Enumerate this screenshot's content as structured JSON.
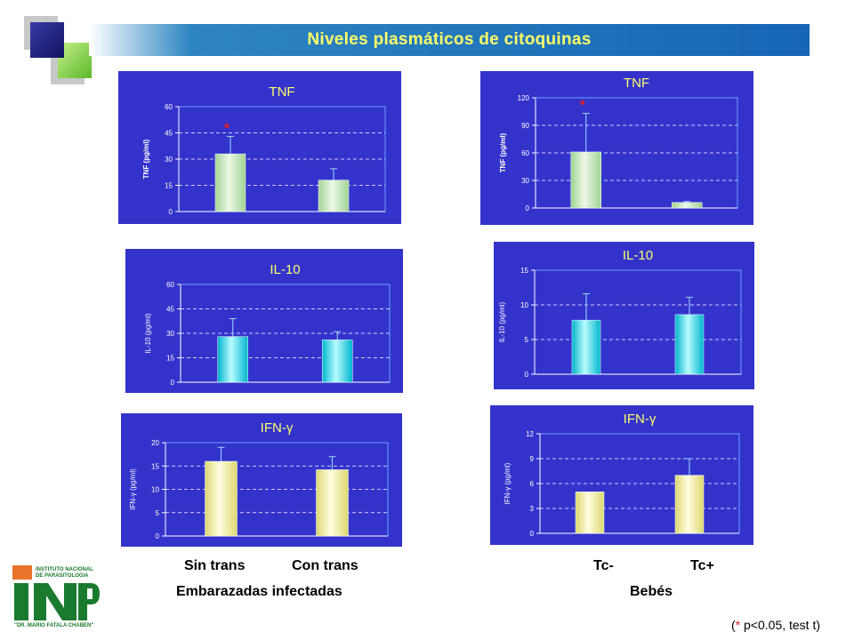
{
  "slide": {
    "title": "Niveles plasmáticos de citoquinas",
    "left_group": {
      "cat1": "Sin trans",
      "cat2": "Con trans",
      "group": "Embarazadas infectadas"
    },
    "right_group": {
      "cat1": "Tc-",
      "cat2": "Tc+",
      "group": "Bebés"
    },
    "footnote": {
      "open": "(",
      "star": "*",
      "text": " p<0.05, test t)"
    },
    "logo": {
      "line1": "INSTITUTO NACIONAL",
      "line2": "DE PARASITOLOGIA",
      "line3": "\"DR. MARIO FATALA CHABEN\""
    },
    "colors": {
      "panel": "#3333cc",
      "accent": "#ffff66",
      "tnf_bar": "#bfe6b0",
      "il10_bar": "#1fd0e0",
      "ifn_bar": "#f0ee90",
      "sig_star": "#e02020"
    }
  },
  "chart_data": [
    {
      "id": "tnf_left",
      "type": "bar",
      "title": "TNF",
      "ylabel": "TNF (pg/ml)",
      "categories": [
        "Sin trans",
        "Con trans"
      ],
      "values": [
        33,
        18
      ],
      "errors": [
        10,
        6.5
      ],
      "ylim": [
        0,
        60
      ],
      "yticks": [
        0,
        15,
        30,
        45,
        60
      ],
      "significance": [
        "*",
        ""
      ],
      "grid": true
    },
    {
      "id": "tnf_right",
      "type": "bar",
      "title": "TNF",
      "ylabel": "TNF (pg/ml)",
      "categories": [
        "Tc-",
        "Tc+"
      ],
      "values": [
        61,
        6
      ],
      "errors": [
        42,
        1
      ],
      "ylim": [
        0,
        120
      ],
      "yticks": [
        0,
        30,
        60,
        90,
        120
      ],
      "significance": [
        "*",
        ""
      ],
      "grid": true
    },
    {
      "id": "il10_left",
      "type": "bar",
      "title": "IL-10",
      "ylabel": "IL-10 (pg/ml)",
      "categories": [
        "Sin trans",
        "Con trans"
      ],
      "values": [
        28,
        26
      ],
      "errors": [
        11,
        5
      ],
      "ylim": [
        0,
        60
      ],
      "yticks": [
        0,
        15,
        30,
        45,
        60
      ],
      "significance": [
        "",
        ""
      ],
      "grid": true
    },
    {
      "id": "il10_right",
      "type": "bar",
      "title": "IL-10",
      "ylabel": "IL-10 (pg/ml)",
      "categories": [
        "Tc-",
        "Tc+"
      ],
      "values": [
        7.8,
        8.6
      ],
      "errors": [
        3.8,
        2.5
      ],
      "ylim": [
        0,
        15
      ],
      "yticks": [
        0,
        5,
        10,
        15
      ],
      "significance": [
        "",
        ""
      ],
      "grid": true
    },
    {
      "id": "ifn_left",
      "type": "bar",
      "title": "IFN-γ",
      "ylabel": "IFN-γ (pg/ml)",
      "categories": [
        "Sin trans",
        "Con trans"
      ],
      "values": [
        16,
        14.2
      ],
      "errors": [
        3,
        2.8
      ],
      "ylim": [
        0,
        20
      ],
      "yticks": [
        0,
        5,
        10,
        15,
        20
      ],
      "significance": [
        "",
        ""
      ],
      "grid": true
    },
    {
      "id": "ifn_right",
      "type": "bar",
      "title": "IFN-γ",
      "ylabel": "IFN-γ (pg/ml)",
      "categories": [
        "Tc-",
        "Tc+"
      ],
      "values": [
        5,
        7
      ],
      "errors": [
        0,
        2
      ],
      "ylim": [
        0,
        12
      ],
      "yticks": [
        0,
        3,
        6,
        9,
        12
      ],
      "significance": [
        "",
        ""
      ],
      "grid": true
    }
  ]
}
